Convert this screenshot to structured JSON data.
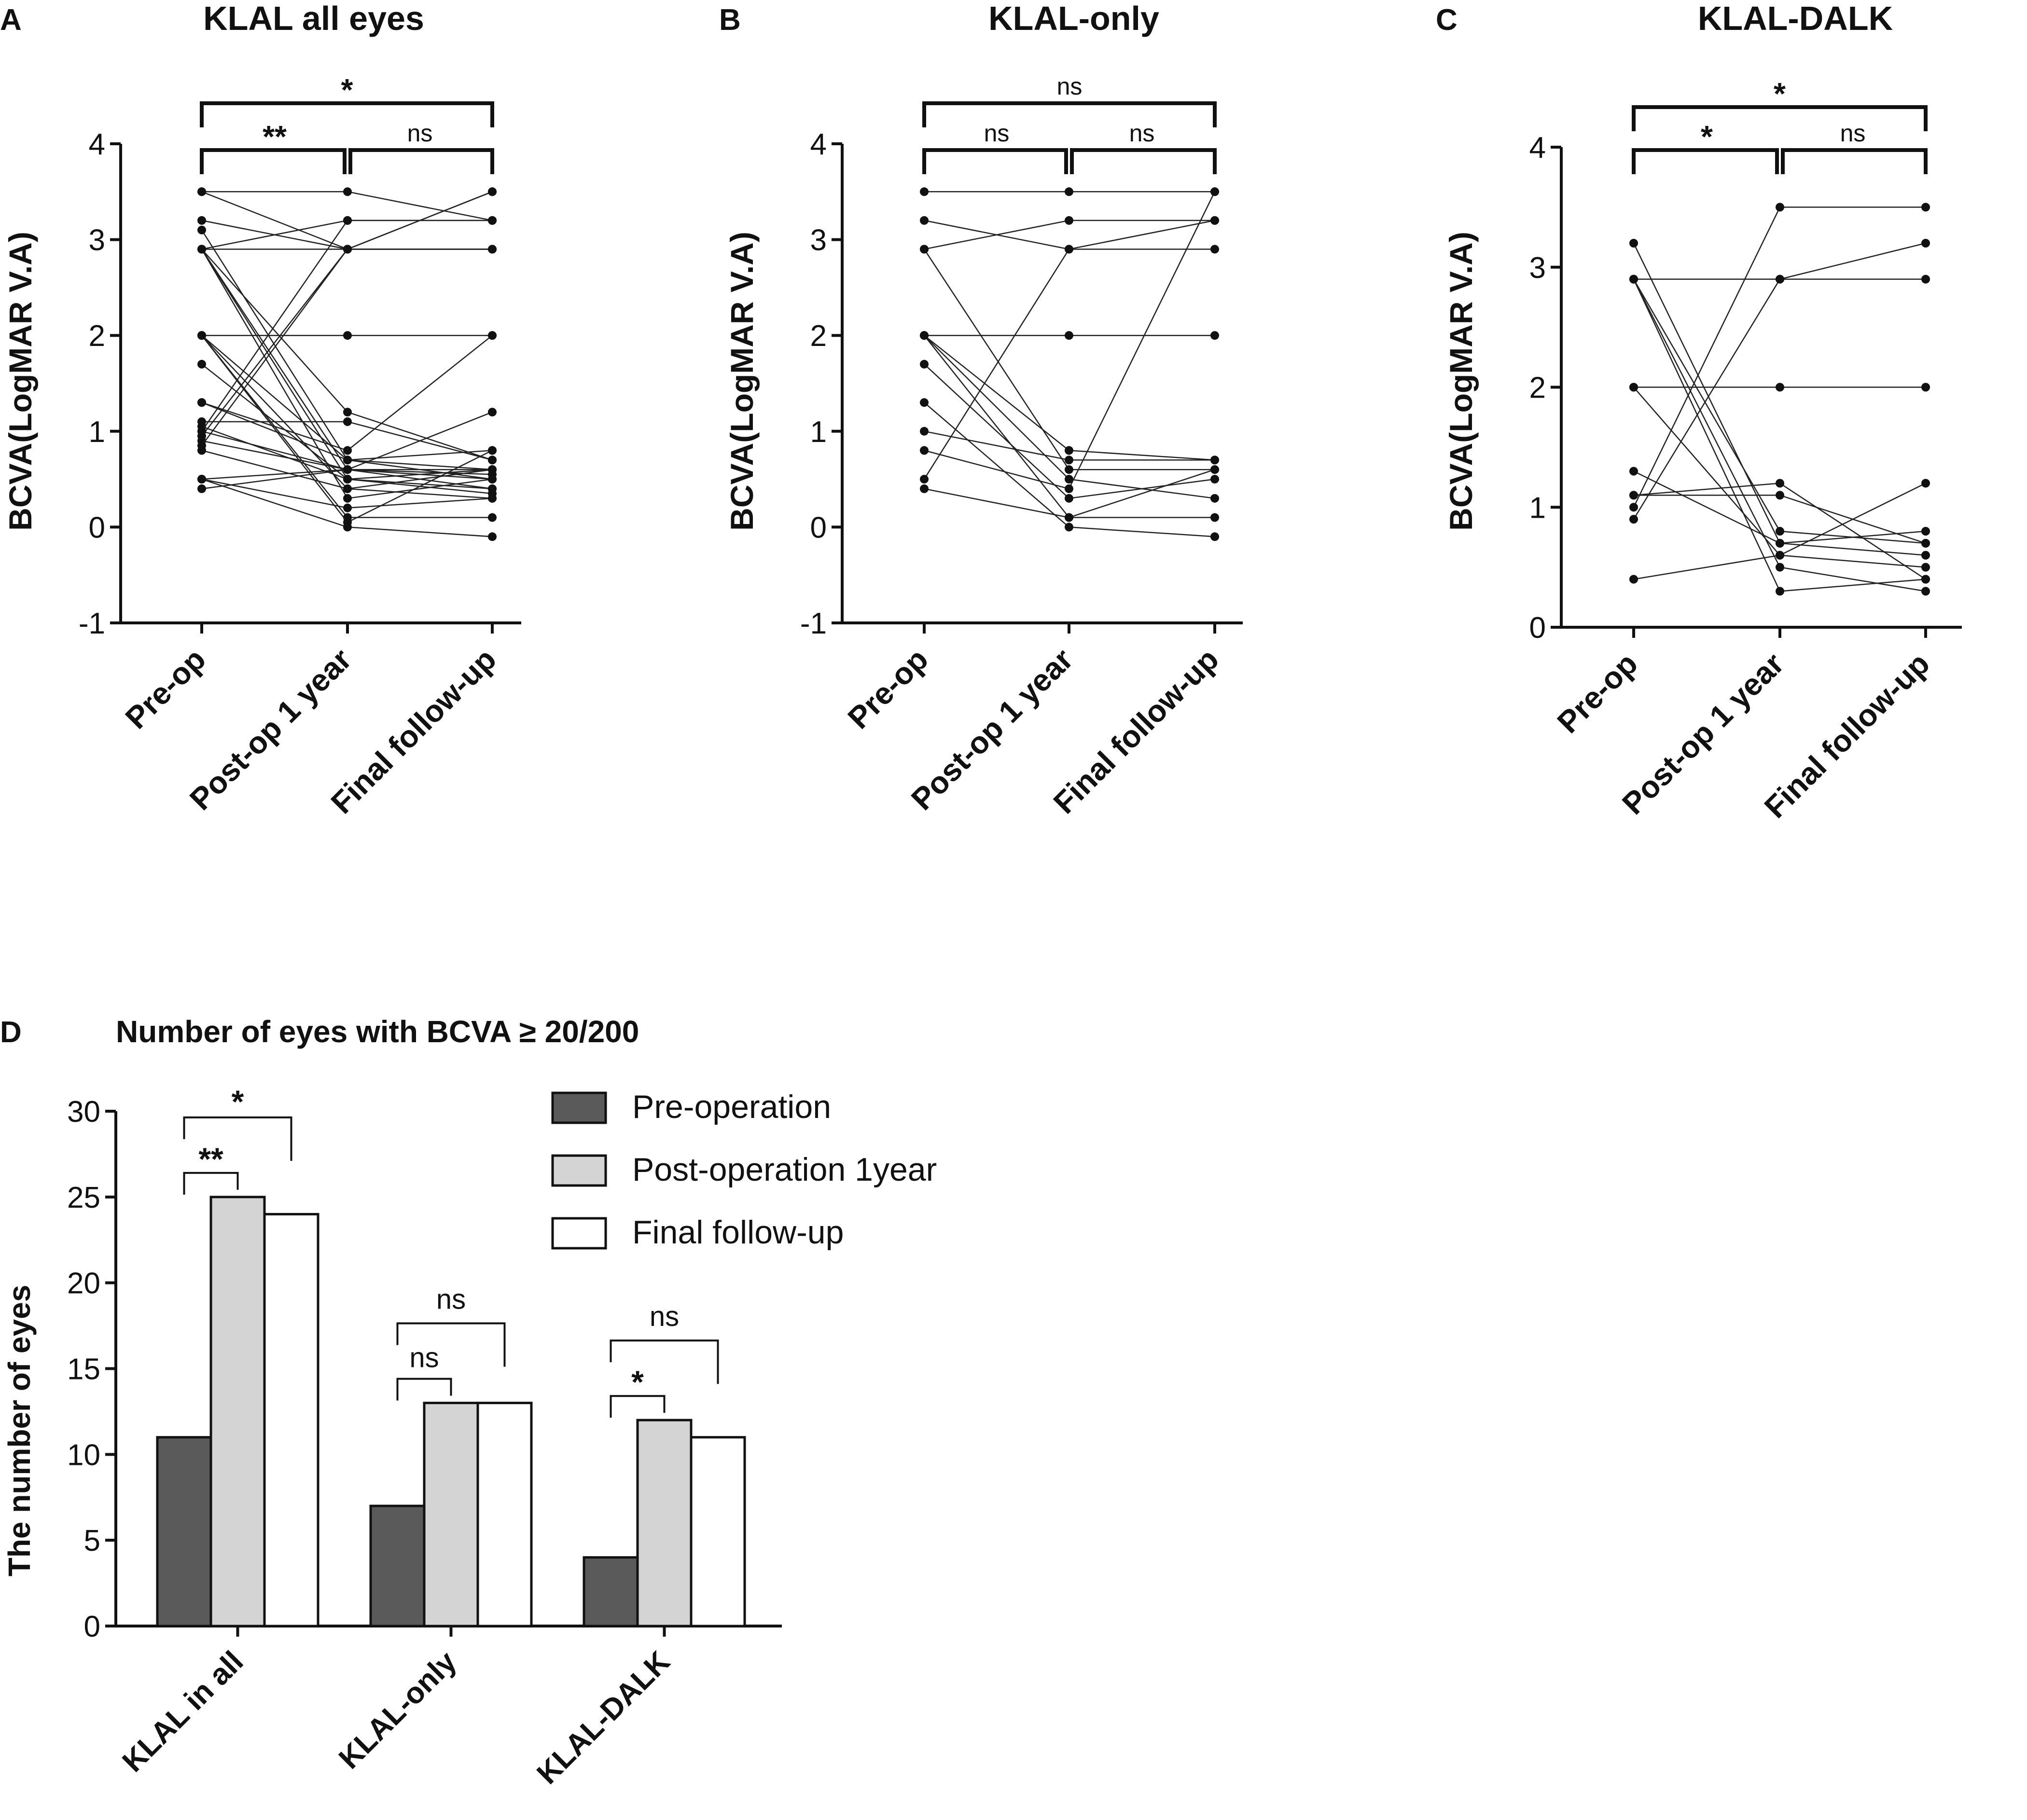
{
  "panels": [
    {
      "letter": "A",
      "title": "KLAL all eyes"
    },
    {
      "letter": "B",
      "title": "KLAL-only"
    },
    {
      "letter": "C",
      "title": "KLAL-DALK"
    },
    {
      "letter": "D",
      "title": "Number of eyes with BCVA ≥ 20/200"
    }
  ],
  "chart_data": [
    {
      "type": "scatter",
      "title": "KLAL all eyes",
      "ylabel": "BCVA(LogMAR V.A)",
      "categories": [
        "Pre-op",
        "Post-op 1 year",
        "Final follow-up"
      ],
      "ylim": [
        -1,
        4
      ],
      "yticks": [
        "4",
        "3",
        "2",
        "1",
        "0",
        "-1"
      ],
      "paired_series": [
        [
          3.5,
          2.9,
          3.5
        ],
        [
          3.5,
          3.5,
          3.2
        ],
        [
          3.2,
          2.9,
          2.9
        ],
        [
          3.1,
          0.7,
          0.6
        ],
        [
          2.9,
          2.9,
          2.9
        ],
        [
          2.9,
          3.2,
          3.2
        ],
        [
          2.9,
          0.5,
          0.4
        ],
        [
          2.9,
          0.3,
          0.5
        ],
        [
          2.9,
          0.6,
          0.6
        ],
        [
          2.9,
          1.2,
          0.7
        ],
        [
          2.0,
          2.0,
          2.0
        ],
        [
          2.0,
          0.1,
          0.1
        ],
        [
          2.0,
          0.4,
          0.3
        ],
        [
          2.0,
          0.7,
          0.5
        ],
        [
          2.0,
          0.05,
          0.8
        ],
        [
          1.7,
          0.5,
          0.6
        ],
        [
          1.3,
          0.7,
          0.8
        ],
        [
          1.1,
          1.1,
          0.7
        ],
        [
          1.05,
          0.5,
          0.35
        ],
        [
          1.0,
          0.6,
          0.55
        ],
        [
          0.9,
          0.6,
          0.5
        ],
        [
          0.8,
          0.4,
          0.6
        ],
        [
          0.5,
          0.0,
          -0.1
        ],
        [
          0.5,
          0.2,
          0.3
        ],
        [
          0.4,
          0.6,
          1.2
        ],
        [
          0.95,
          2.9,
          2.9
        ],
        [
          1.0,
          3.2,
          3.2
        ],
        [
          0.85,
          2.9,
          3.5
        ],
        [
          1.3,
          0.8,
          2.0
        ],
        [
          0.5,
          0.6,
          0.4
        ]
      ],
      "significance": [
        {
          "from": "Pre-op",
          "to": "Post-op 1 year",
          "label": "**"
        },
        {
          "from": "Post-op 1 year",
          "to": "Final follow-up",
          "label": "ns"
        },
        {
          "from": "Pre-op",
          "to": "Final follow-up",
          "label": "*"
        }
      ]
    },
    {
      "type": "scatter",
      "title": "KLAL-only",
      "ylabel": "BCVA(LogMAR V.A)",
      "categories": [
        "Pre-op",
        "Post-op 1 year",
        "Final follow-up"
      ],
      "ylim": [
        -1,
        4
      ],
      "yticks": [
        "4",
        "3",
        "2",
        "1",
        "0",
        "-1"
      ],
      "paired_series": [
        [
          3.5,
          3.5,
          3.5
        ],
        [
          3.2,
          2.9,
          2.9
        ],
        [
          2.9,
          3.2,
          3.2
        ],
        [
          2.9,
          0.6,
          0.6
        ],
        [
          2.0,
          2.0,
          2.0
        ],
        [
          2.0,
          0.1,
          0.1
        ],
        [
          2.0,
          0.5,
          0.3
        ],
        [
          2.0,
          0.8,
          0.7
        ],
        [
          1.7,
          0.3,
          0.5
        ],
        [
          1.3,
          0.0,
          -0.1
        ],
        [
          1.0,
          0.7,
          0.7
        ],
        [
          0.8,
          0.4,
          3.5
        ],
        [
          0.5,
          2.9,
          3.2
        ],
        [
          0.4,
          0.1,
          0.6
        ]
      ],
      "significance": [
        {
          "from": "Pre-op",
          "to": "Post-op 1 year",
          "label": "ns"
        },
        {
          "from": "Post-op 1 year",
          "to": "Final follow-up",
          "label": "ns"
        },
        {
          "from": "Pre-op",
          "to": "Final follow-up",
          "label": "ns"
        }
      ]
    },
    {
      "type": "scatter",
      "title": "KLAL-DALK",
      "ylabel": "BCVA(LogMAR V.A)",
      "categories": [
        "Pre-op",
        "Post-op 1 year",
        "Final follow-up"
      ],
      "ylim": [
        0,
        4
      ],
      "yticks": [
        "4",
        "3",
        "2",
        "1",
        "0"
      ],
      "paired_series": [
        [
          3.2,
          0.7,
          0.6
        ],
        [
          2.9,
          2.9,
          2.9
        ],
        [
          2.9,
          0.3,
          0.4
        ],
        [
          2.9,
          0.8,
          0.7
        ],
        [
          2.9,
          0.5,
          0.3
        ],
        [
          2.0,
          2.0,
          2.0
        ],
        [
          2.0,
          0.6,
          0.5
        ],
        [
          1.3,
          0.7,
          0.8
        ],
        [
          1.1,
          1.1,
          0.7
        ],
        [
          1.0,
          3.5,
          3.5
        ],
        [
          0.9,
          2.9,
          3.2
        ],
        [
          0.4,
          0.6,
          1.2
        ],
        [
          1.1,
          1.2,
          0.4
        ]
      ],
      "significance": [
        {
          "from": "Pre-op",
          "to": "Post-op 1 year",
          "label": "*"
        },
        {
          "from": "Post-op 1 year",
          "to": "Final follow-up",
          "label": "ns"
        },
        {
          "from": "Pre-op",
          "to": "Final follow-up",
          "label": "*"
        }
      ]
    },
    {
      "type": "bar",
      "title": "Number of eyes with BCVA ≥ 20/200",
      "ylabel": "The number of eyes",
      "categories": [
        "KLAL in all",
        "KLAL-only",
        "KLAL-DALK"
      ],
      "ylim": [
        0,
        30
      ],
      "yticks": [
        "30",
        "25",
        "20",
        "15",
        "10",
        "5",
        "0"
      ],
      "series": [
        {
          "name": "Pre-operation",
          "values": [
            11,
            7,
            4
          ],
          "color": "#5a5a5a"
        },
        {
          "name": "Post-operation 1year",
          "values": [
            25,
            13,
            12
          ],
          "color": "#d4d4d4"
        },
        {
          "name": "Final follow-up",
          "values": [
            24,
            13,
            11
          ],
          "color": "#ffffff"
        }
      ],
      "significance": [
        {
          "group": "KLAL in all",
          "pair": "pre-post1y",
          "label": "**"
        },
        {
          "group": "KLAL in all",
          "pair": "pre-final",
          "label": "*"
        },
        {
          "group": "KLAL-only",
          "pair": "pre-post1y",
          "label": "ns"
        },
        {
          "group": "KLAL-only",
          "pair": "pre-final",
          "label": "ns"
        },
        {
          "group": "KLAL-DALK",
          "pair": "pre-post1y",
          "label": "*"
        },
        {
          "group": "KLAL-DALK",
          "pair": "pre-final",
          "label": "ns"
        }
      ]
    }
  ]
}
